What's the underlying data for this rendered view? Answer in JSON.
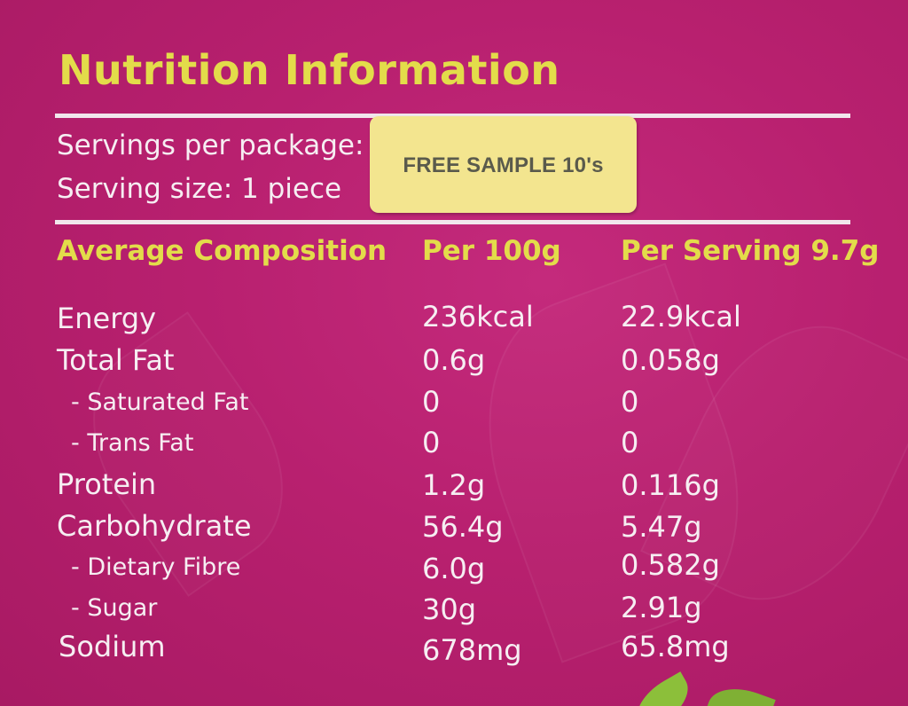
{
  "title": "Nutrition Information",
  "servings": {
    "per_package": "Servings per package:",
    "serving_size": "Serving size: 1 piece"
  },
  "sticker": {
    "text": "FREE SAMPLE 10's"
  },
  "headers": {
    "composition": "Average Composition",
    "per100": "Per 100g",
    "per_serving": "Per Serving 9.7g"
  },
  "rows": [
    {
      "label": "Energy",
      "per100": "236kcal",
      "per_serving": "22.9kcal"
    },
    {
      "label": "Total Fat",
      "per100": "0.6g",
      "per_serving": "0.058g"
    },
    {
      "label": "- Saturated Fat",
      "per100": "0",
      "per_serving": "0"
    },
    {
      "label": "- Trans Fat",
      "per100": "0",
      "per_serving": "0"
    },
    {
      "label": "Protein",
      "per100": "1.2g",
      "per_serving": "0.116g"
    },
    {
      "label": "Carbohydrate",
      "per100": "56.4g",
      "per_serving": "5.47g"
    },
    {
      "label": "- Dietary Fibre",
      "per100": "6.0g",
      "per_serving": "0.582g"
    },
    {
      "label": "- Sugar",
      "per100": "30g",
      "per_serving": "2.91g"
    },
    {
      "label": "Sodium",
      "per100": "678mg",
      "per_serving": "65.8mg"
    }
  ]
}
